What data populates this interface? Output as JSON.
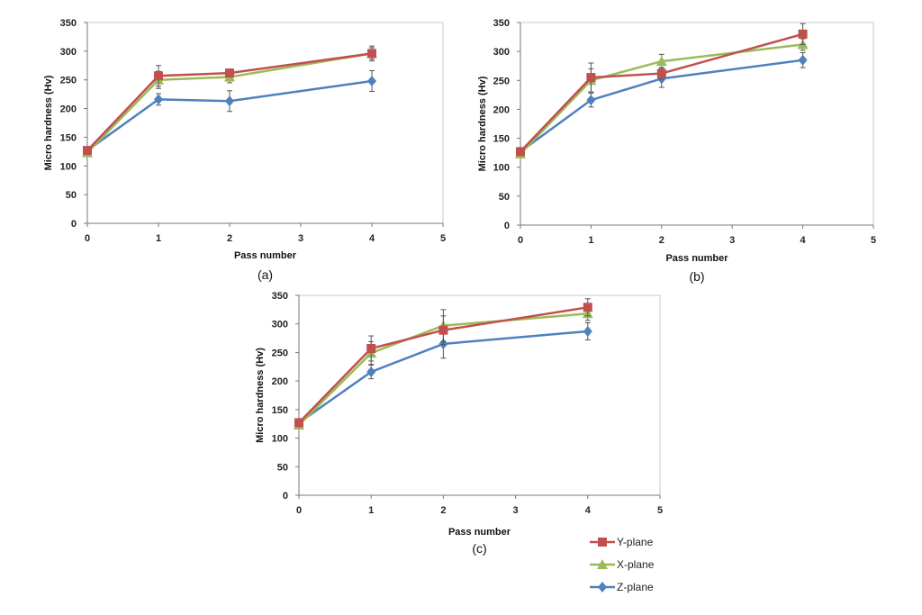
{
  "chart_data": [
    {
      "type": "line",
      "panel_label": "(a)",
      "xlabel": "Pass number",
      "ylabel": "Micro hardness (Hv)",
      "xlim": [
        0,
        5
      ],
      "ylim": [
        0,
        350
      ],
      "xticks": [
        "0",
        "1",
        "2",
        "3",
        "4",
        "5"
      ],
      "yticks": [
        "0",
        "50",
        "100",
        "150",
        "200",
        "250",
        "300",
        "350"
      ],
      "x": [
        0,
        1,
        2,
        4
      ],
      "series": [
        {
          "name": "Y-plane",
          "color": "#c0504d",
          "marker": "square",
          "values": [
            127,
            257,
            262,
            296
          ],
          "errors": [
            0,
            18,
            4,
            13
          ]
        },
        {
          "name": "X-plane",
          "color": "#9bbb59",
          "marker": "triangle",
          "values": [
            123,
            250,
            255,
            296
          ],
          "errors": [
            0,
            15,
            10,
            10
          ]
        },
        {
          "name": "Z-plane",
          "color": "#4f81bd",
          "marker": "diamond",
          "values": [
            127,
            216,
            213,
            248
          ],
          "errors": [
            0,
            10,
            18,
            18
          ]
        }
      ]
    },
    {
      "type": "line",
      "panel_label": "(b)",
      "xlabel": "Pass number",
      "ylabel": "Micro hardness (Hv)",
      "xlim": [
        0,
        5
      ],
      "ylim": [
        0,
        350
      ],
      "xticks": [
        "0",
        "1",
        "2",
        "3",
        "4",
        "5"
      ],
      "yticks": [
        "0",
        "50",
        "100",
        "150",
        "200",
        "250",
        "300",
        "350"
      ],
      "x": [
        0,
        1,
        2,
        4
      ],
      "series": [
        {
          "name": "Y-plane",
          "color": "#c0504d",
          "marker": "square",
          "values": [
            127,
            255,
            262,
            330
          ],
          "errors": [
            0,
            25,
            10,
            18
          ]
        },
        {
          "name": "X-plane",
          "color": "#9bbb59",
          "marker": "triangle",
          "values": [
            123,
            250,
            283,
            312
          ],
          "errors": [
            0,
            20,
            12,
            10
          ]
        },
        {
          "name": "Z-plane",
          "color": "#4f81bd",
          "marker": "diamond",
          "values": [
            127,
            216,
            253,
            285
          ],
          "errors": [
            0,
            12,
            15,
            13
          ]
        }
      ]
    },
    {
      "type": "line",
      "panel_label": "(c)",
      "xlabel": "Pass number",
      "ylabel": "Micro hardness (Hv)",
      "xlim": [
        0,
        5
      ],
      "ylim": [
        0,
        350
      ],
      "xticks": [
        "0",
        "1",
        "2",
        "3",
        "4",
        "5"
      ],
      "yticks": [
        "0",
        "50",
        "100",
        "150",
        "200",
        "250",
        "300",
        "350"
      ],
      "x": [
        0,
        1,
        2,
        4
      ],
      "series": [
        {
          "name": "Y-plane",
          "color": "#c0504d",
          "marker": "square",
          "values": [
            127,
            257,
            289,
            329
          ],
          "errors": [
            0,
            22,
            25,
            15
          ]
        },
        {
          "name": "X-plane",
          "color": "#9bbb59",
          "marker": "triangle",
          "values": [
            123,
            249,
            297,
            318
          ],
          "errors": [
            0,
            20,
            28,
            12
          ]
        },
        {
          "name": "Z-plane",
          "color": "#4f81bd",
          "marker": "diamond",
          "values": [
            127,
            216,
            265,
            287
          ],
          "errors": [
            0,
            12,
            25,
            15
          ]
        }
      ]
    }
  ],
  "legend": {
    "items": [
      {
        "label": "Y-plane",
        "color": "#c0504d",
        "marker": "square"
      },
      {
        "label": "X-plane",
        "color": "#9bbb59",
        "marker": "triangle"
      },
      {
        "label": "Z-plane",
        "color": "#4f81bd",
        "marker": "diamond"
      }
    ]
  }
}
